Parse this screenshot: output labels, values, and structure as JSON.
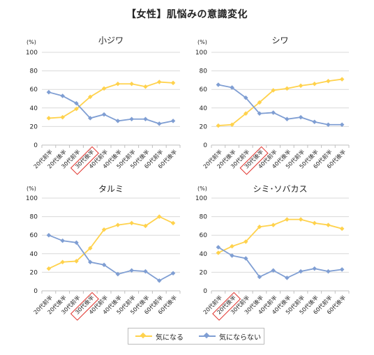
{
  "title": "【女性】肌悩みの意識変化",
  "colors": {
    "series_a": "#FFD24C",
    "series_b": "#7F9ED3",
    "highlight": "#E0302A",
    "grid": "#d9d9d9",
    "axis": "#bfbfbf"
  },
  "legend": {
    "series_a": "気になる",
    "series_b": "気にならない"
  },
  "chart_data": [
    {
      "type": "line",
      "title": "小ジワ",
      "unit_label": "(%)",
      "ylim": [
        0,
        100
      ],
      "yticks": [
        0,
        20,
        40,
        60,
        80,
        100
      ],
      "categories": [
        "20代前半",
        "20代後半",
        "30代前半",
        "30代後半",
        "40代前半",
        "40代後半",
        "50代前半",
        "50代後半",
        "60代前半",
        "60代後半"
      ],
      "highlighted_category": "30代後半",
      "grid": true,
      "series": [
        {
          "name": "気になる",
          "values": [
            29,
            30,
            39,
            52,
            61,
            66,
            66,
            63,
            68,
            67
          ]
        },
        {
          "name": "気にならない",
          "values": [
            57,
            53,
            45,
            29,
            33,
            26,
            28,
            28,
            23,
            26
          ]
        }
      ]
    },
    {
      "type": "line",
      "title": "シワ",
      "unit_label": "(%)",
      "ylim": [
        0,
        100
      ],
      "yticks": [
        0,
        20,
        40,
        60,
        80,
        100
      ],
      "categories": [
        "20代前半",
        "20代後半",
        "30代前半",
        "30代後半",
        "40代前半",
        "40代後半",
        "50代前半",
        "50代後半",
        "60代前半",
        "60代後半"
      ],
      "highlighted_category": "30代後半",
      "grid": true,
      "series": [
        {
          "name": "気になる",
          "values": [
            21,
            22,
            34,
            46,
            59,
            61,
            64,
            66,
            69,
            71
          ]
        },
        {
          "name": "気にならない",
          "values": [
            65,
            62,
            51,
            34,
            35,
            28,
            30,
            25,
            22,
            22
          ]
        }
      ]
    },
    {
      "type": "line",
      "title": "タルミ",
      "unit_label": "(%)",
      "ylim": [
        0,
        100
      ],
      "yticks": [
        0,
        20,
        40,
        60,
        80,
        100
      ],
      "categories": [
        "20代前半",
        "20代後半",
        "30代前半",
        "30代後半",
        "40代前半",
        "40代後半",
        "50代前半",
        "50代後半",
        "60代前半",
        "60代後半"
      ],
      "highlighted_category": "30代後半",
      "grid": true,
      "series": [
        {
          "name": "気になる",
          "values": [
            24,
            31,
            32,
            46,
            66,
            71,
            73,
            70,
            80,
            73
          ]
        },
        {
          "name": "気にならない",
          "values": [
            60,
            54,
            52,
            31,
            28,
            18,
            22,
            21,
            11,
            19
          ]
        }
      ]
    },
    {
      "type": "line",
      "title": "シミ･ソバカス",
      "unit_label": "(%)",
      "ylim": [
        0,
        100
      ],
      "yticks": [
        0,
        20,
        40,
        60,
        80,
        100
      ],
      "categories": [
        "20代前半",
        "20代後半",
        "30代前半",
        "30代後半",
        "40代前半",
        "40代後半",
        "50代前半",
        "50代後半",
        "60代前半",
        "60代後半"
      ],
      "highlighted_category": "20代後半",
      "grid": true,
      "series": [
        {
          "name": "気になる",
          "values": [
            41,
            48,
            53,
            69,
            71,
            77,
            77,
            73,
            71,
            67
          ]
        },
        {
          "name": "気にならない",
          "values": [
            47,
            38,
            35,
            15,
            22,
            14,
            21,
            24,
            21,
            23
          ]
        }
      ]
    }
  ]
}
